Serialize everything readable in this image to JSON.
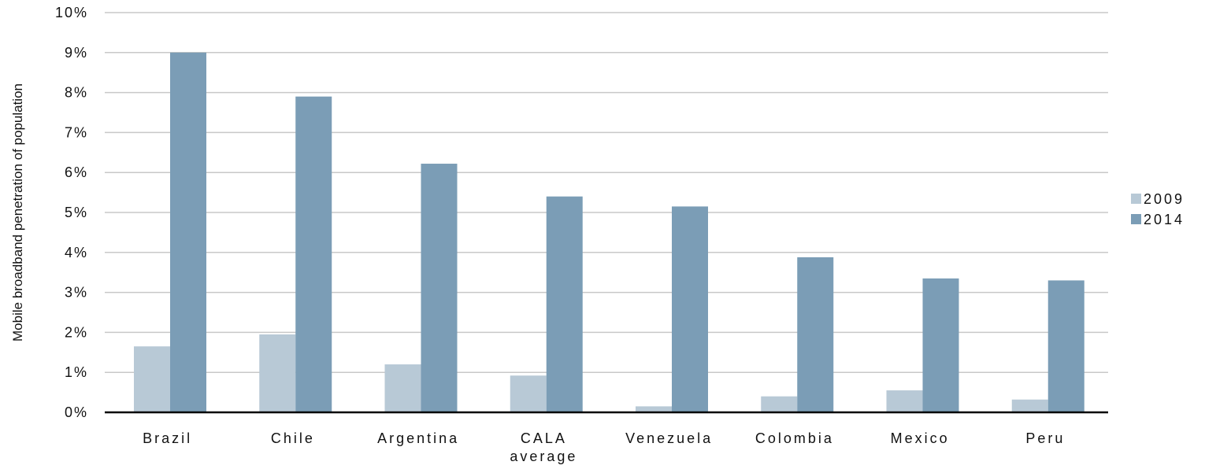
{
  "chart_data": {
    "type": "bar",
    "categories": [
      [
        "Brazil"
      ],
      [
        "Chile"
      ],
      [
        "Argentina"
      ],
      [
        "CALA",
        "average"
      ],
      [
        "Venezuela"
      ],
      [
        "Colombia"
      ],
      [
        "Mexico"
      ],
      [
        "Peru"
      ]
    ],
    "series": [
      {
        "name": "2009",
        "color": "#b8c9d6",
        "values": [
          1.65,
          1.95,
          1.2,
          0.92,
          0.15,
          0.4,
          0.55,
          0.32
        ]
      },
      {
        "name": "2014",
        "color": "#7b9db6",
        "values": [
          9.0,
          7.9,
          6.22,
          5.4,
          5.15,
          3.88,
          3.35,
          3.3
        ]
      }
    ],
    "ylabel": "Mobile broadband penetration of population",
    "ylim": [
      0,
      10
    ],
    "yticks": [
      "0%",
      "1%",
      "2%",
      "3%",
      "4%",
      "5%",
      "6%",
      "7%",
      "8%",
      "9%",
      "10%"
    ],
    "grid": true,
    "legend_position": "right"
  }
}
